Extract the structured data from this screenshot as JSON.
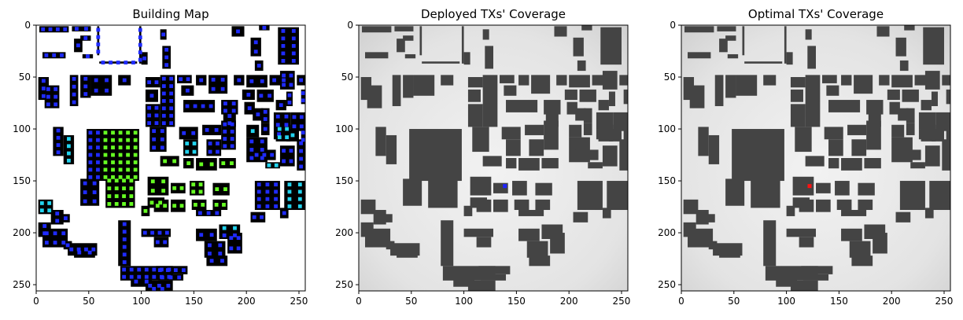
{
  "chart_data": [
    {
      "type": "heatmap",
      "title": "Building Map",
      "xlim": [
        0,
        255
      ],
      "ylim": [
        255,
        0
      ],
      "x_ticks": [
        "0",
        "50",
        "100",
        "150",
        "200",
        "250"
      ],
      "y_ticks": [
        "0",
        "50",
        "100",
        "150",
        "200",
        "250"
      ],
      "image": "building footprints (black) with candidate transmitter sites colored by score",
      "colors": {
        "background": "#ffffff",
        "building": "#000000",
        "site_low": "#1f2bff",
        "site_mid": "#22d3ee",
        "site_high": "#66ff22"
      }
    },
    {
      "type": "heatmap",
      "title": "Deployed TXs' Coverage",
      "xlim": [
        0,
        255
      ],
      "ylim": [
        255,
        0
      ],
      "x_ticks": [
        "0",
        "50",
        "100",
        "150",
        "200",
        "250"
      ],
      "y_ticks": [
        "0",
        "50",
        "100",
        "150",
        "200",
        "250"
      ],
      "tx_marker": {
        "x": 139,
        "y": 155,
        "color": "#1e24ff"
      },
      "colors": {
        "background": "#e6e6e6",
        "building": "#444444"
      }
    },
    {
      "type": "heatmap",
      "title": "Optimal TXs' Coverage",
      "xlim": [
        0,
        255
      ],
      "ylim": [
        255,
        0
      ],
      "x_ticks": [
        "0",
        "50",
        "100",
        "150",
        "200",
        "250"
      ],
      "y_ticks": [
        "0",
        "50",
        "100",
        "150",
        "200",
        "250"
      ],
      "tx_marker": {
        "x": 122,
        "y": 155,
        "color": "#ff1111"
      },
      "colors": {
        "background": "#e6e6e6",
        "building": "#444444"
      }
    }
  ]
}
